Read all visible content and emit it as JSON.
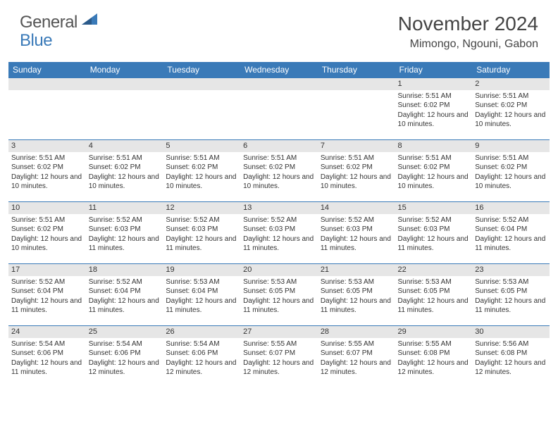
{
  "logo": {
    "general": "General",
    "blue": "Blue"
  },
  "title": "November 2024",
  "location": "Mimongo, Ngouni, Gabon",
  "colors": {
    "header_bg": "#3a7ab8",
    "header_text": "#ffffff",
    "daynum_bg": "#e6e6e6",
    "border": "#3a7ab8",
    "text": "#333333",
    "logo_gray": "#555555",
    "logo_blue": "#3a7ab8"
  },
  "day_names": [
    "Sunday",
    "Monday",
    "Tuesday",
    "Wednesday",
    "Thursday",
    "Friday",
    "Saturday"
  ],
  "weeks": [
    [
      null,
      null,
      null,
      null,
      null,
      {
        "n": "1",
        "sr": "5:51 AM",
        "ss": "6:02 PM",
        "dl": "12 hours and 10 minutes."
      },
      {
        "n": "2",
        "sr": "5:51 AM",
        "ss": "6:02 PM",
        "dl": "12 hours and 10 minutes."
      }
    ],
    [
      {
        "n": "3",
        "sr": "5:51 AM",
        "ss": "6:02 PM",
        "dl": "12 hours and 10 minutes."
      },
      {
        "n": "4",
        "sr": "5:51 AM",
        "ss": "6:02 PM",
        "dl": "12 hours and 10 minutes."
      },
      {
        "n": "5",
        "sr": "5:51 AM",
        "ss": "6:02 PM",
        "dl": "12 hours and 10 minutes."
      },
      {
        "n": "6",
        "sr": "5:51 AM",
        "ss": "6:02 PM",
        "dl": "12 hours and 10 minutes."
      },
      {
        "n": "7",
        "sr": "5:51 AM",
        "ss": "6:02 PM",
        "dl": "12 hours and 10 minutes."
      },
      {
        "n": "8",
        "sr": "5:51 AM",
        "ss": "6:02 PM",
        "dl": "12 hours and 10 minutes."
      },
      {
        "n": "9",
        "sr": "5:51 AM",
        "ss": "6:02 PM",
        "dl": "12 hours and 10 minutes."
      }
    ],
    [
      {
        "n": "10",
        "sr": "5:51 AM",
        "ss": "6:02 PM",
        "dl": "12 hours and 10 minutes."
      },
      {
        "n": "11",
        "sr": "5:52 AM",
        "ss": "6:03 PM",
        "dl": "12 hours and 11 minutes."
      },
      {
        "n": "12",
        "sr": "5:52 AM",
        "ss": "6:03 PM",
        "dl": "12 hours and 11 minutes."
      },
      {
        "n": "13",
        "sr": "5:52 AM",
        "ss": "6:03 PM",
        "dl": "12 hours and 11 minutes."
      },
      {
        "n": "14",
        "sr": "5:52 AM",
        "ss": "6:03 PM",
        "dl": "12 hours and 11 minutes."
      },
      {
        "n": "15",
        "sr": "5:52 AM",
        "ss": "6:03 PM",
        "dl": "12 hours and 11 minutes."
      },
      {
        "n": "16",
        "sr": "5:52 AM",
        "ss": "6:04 PM",
        "dl": "12 hours and 11 minutes."
      }
    ],
    [
      {
        "n": "17",
        "sr": "5:52 AM",
        "ss": "6:04 PM",
        "dl": "12 hours and 11 minutes."
      },
      {
        "n": "18",
        "sr": "5:52 AM",
        "ss": "6:04 PM",
        "dl": "12 hours and 11 minutes."
      },
      {
        "n": "19",
        "sr": "5:53 AM",
        "ss": "6:04 PM",
        "dl": "12 hours and 11 minutes."
      },
      {
        "n": "20",
        "sr": "5:53 AM",
        "ss": "6:05 PM",
        "dl": "12 hours and 11 minutes."
      },
      {
        "n": "21",
        "sr": "5:53 AM",
        "ss": "6:05 PM",
        "dl": "12 hours and 11 minutes."
      },
      {
        "n": "22",
        "sr": "5:53 AM",
        "ss": "6:05 PM",
        "dl": "12 hours and 11 minutes."
      },
      {
        "n": "23",
        "sr": "5:53 AM",
        "ss": "6:05 PM",
        "dl": "12 hours and 11 minutes."
      }
    ],
    [
      {
        "n": "24",
        "sr": "5:54 AM",
        "ss": "6:06 PM",
        "dl": "12 hours and 11 minutes."
      },
      {
        "n": "25",
        "sr": "5:54 AM",
        "ss": "6:06 PM",
        "dl": "12 hours and 12 minutes."
      },
      {
        "n": "26",
        "sr": "5:54 AM",
        "ss": "6:06 PM",
        "dl": "12 hours and 12 minutes."
      },
      {
        "n": "27",
        "sr": "5:55 AM",
        "ss": "6:07 PM",
        "dl": "12 hours and 12 minutes."
      },
      {
        "n": "28",
        "sr": "5:55 AM",
        "ss": "6:07 PM",
        "dl": "12 hours and 12 minutes."
      },
      {
        "n": "29",
        "sr": "5:55 AM",
        "ss": "6:08 PM",
        "dl": "12 hours and 12 minutes."
      },
      {
        "n": "30",
        "sr": "5:56 AM",
        "ss": "6:08 PM",
        "dl": "12 hours and 12 minutes."
      }
    ]
  ],
  "labels": {
    "sunrise": "Sunrise:",
    "sunset": "Sunset:",
    "daylight": "Daylight:"
  }
}
